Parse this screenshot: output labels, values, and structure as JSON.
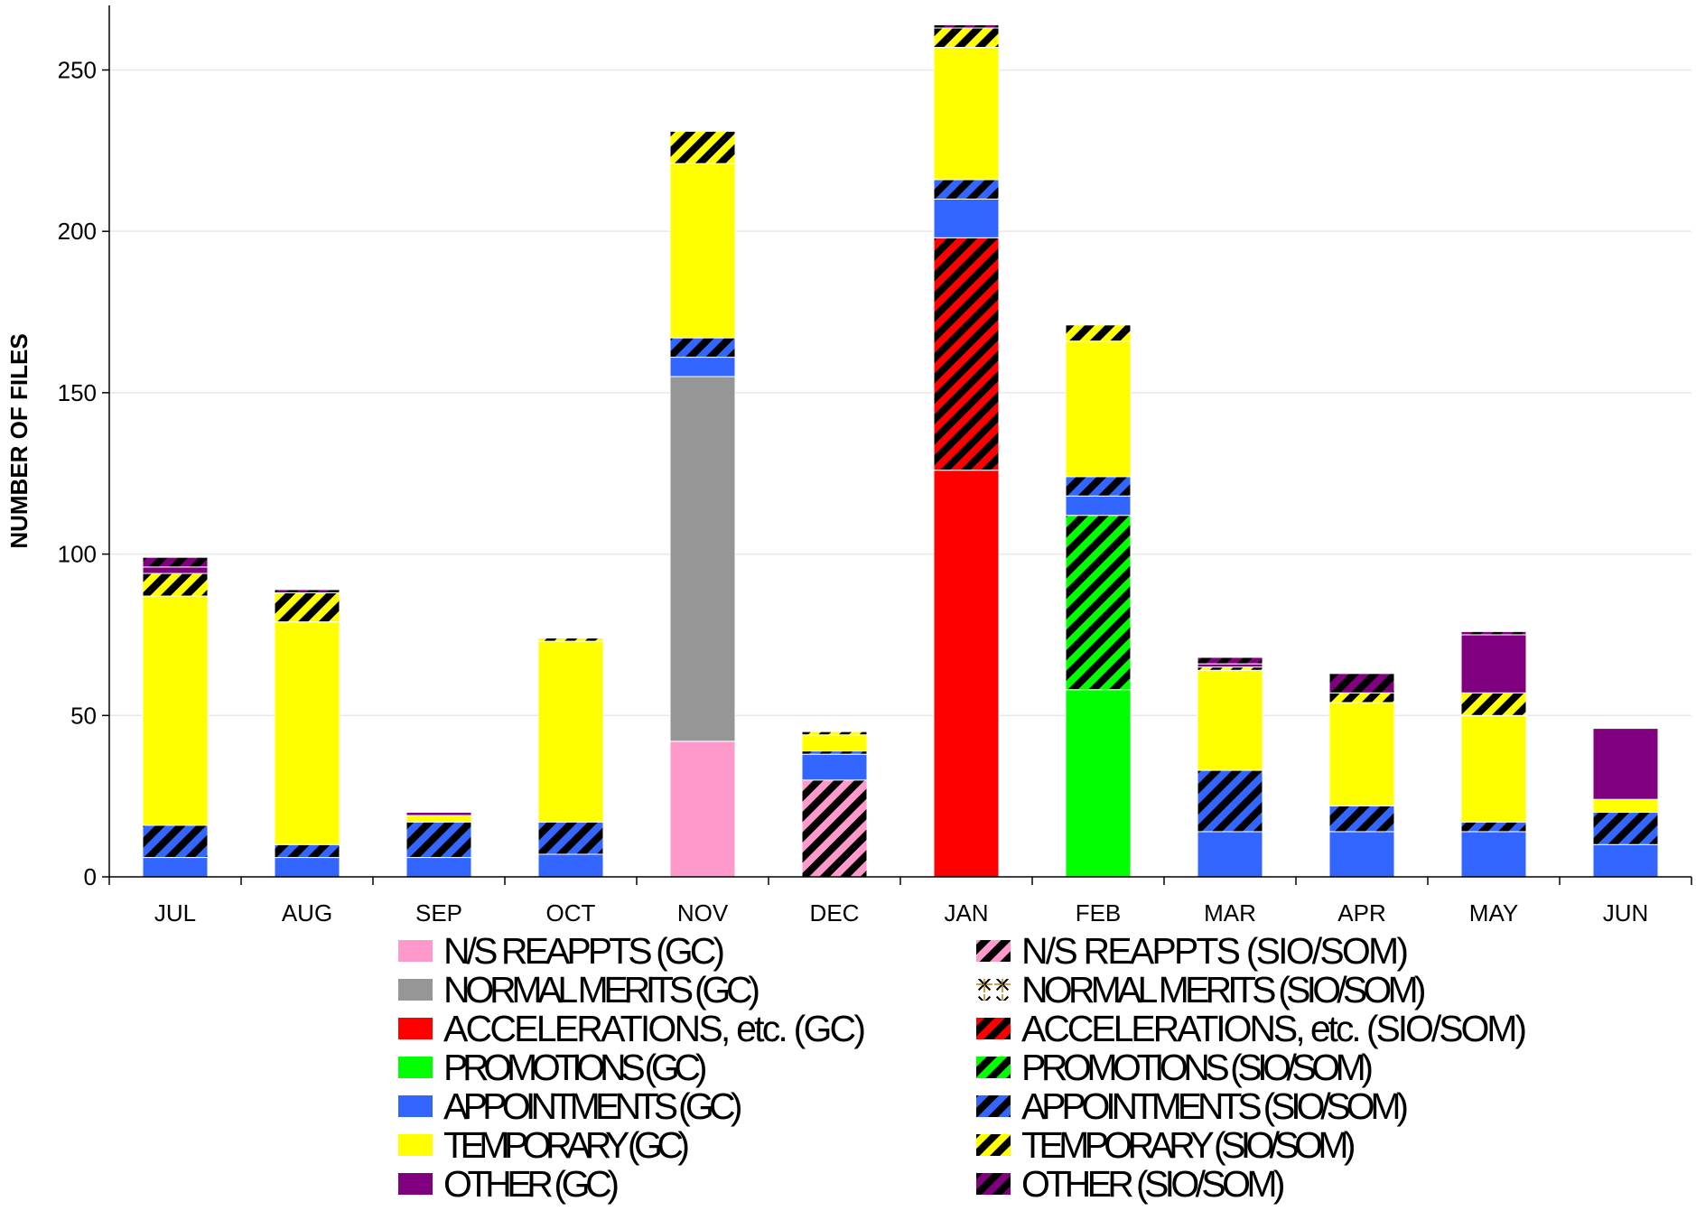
{
  "chart_data": {
    "type": "bar",
    "stacked": true,
    "title": "",
    "xlabel": "",
    "ylabel": "NUMBER OF FILES",
    "ylim": [
      0,
      270
    ],
    "yticks": [
      0,
      50,
      100,
      150,
      200,
      250
    ],
    "grid": true,
    "legend_position": "bottom",
    "categories": [
      "JUL",
      "AUG",
      "SEP",
      "OCT",
      "NOV",
      "DEC",
      "JAN",
      "FEB",
      "MAR",
      "APR",
      "MAY",
      "JUN"
    ],
    "series": [
      {
        "name": "N/S REAPPTS (GC)",
        "color": "#ff99cc",
        "pattern": "solid",
        "values": [
          0,
          0,
          0,
          0,
          42,
          0,
          0,
          0,
          0,
          0,
          0,
          0
        ]
      },
      {
        "name": "N/S REAPPTS  (SIO/SOM)",
        "color": "#ff99cc",
        "pattern": "hatched",
        "values": [
          0,
          0,
          0,
          0,
          0,
          30,
          0,
          0,
          0,
          0,
          0,
          0
        ]
      },
      {
        "name": "NORMAL MERITS (GC)",
        "color": "#969696",
        "pattern": "solid",
        "values": [
          0,
          0,
          0,
          0,
          113,
          0,
          0,
          0,
          0,
          0,
          0,
          0
        ]
      },
      {
        "name": "NORMAL MERITS (SIO/SOM)",
        "color": "#c8a050",
        "pattern": "starburst",
        "values": [
          0,
          0,
          0,
          0,
          0,
          0,
          0,
          0,
          0,
          0,
          0,
          0
        ]
      },
      {
        "name": "ACCELERATIONS, etc. (GC)",
        "color": "#ff0000",
        "pattern": "solid",
        "values": [
          0,
          0,
          0,
          0,
          0,
          0,
          126,
          0,
          0,
          0,
          0,
          0
        ]
      },
      {
        "name": "ACCELERATIONS, etc. (SIO/SOM)",
        "color": "#ff0000",
        "pattern": "hatched",
        "values": [
          0,
          0,
          0,
          0,
          0,
          0,
          72,
          0,
          0,
          0,
          0,
          0
        ]
      },
      {
        "name": "PROMOTIONS (GC)",
        "color": "#00ff00",
        "pattern": "solid",
        "values": [
          0,
          0,
          0,
          0,
          0,
          0,
          0,
          58,
          0,
          0,
          0,
          0
        ]
      },
      {
        "name": "PROMOTIONS (SIO/SOM)",
        "color": "#00ff00",
        "pattern": "hatched",
        "values": [
          0,
          0,
          0,
          0,
          0,
          0,
          0,
          54,
          0,
          0,
          0,
          0
        ]
      },
      {
        "name": "APPOINTMENTS (GC)",
        "color": "#3366ff",
        "pattern": "solid",
        "values": [
          6,
          6,
          6,
          7,
          6,
          8,
          12,
          6,
          14,
          14,
          14,
          10
        ]
      },
      {
        "name": "APPOINTMENTS (SIO/SOM)",
        "color": "#3366ff",
        "pattern": "hatched",
        "values": [
          10,
          4,
          11,
          10,
          6,
          1,
          6,
          6,
          19,
          8,
          3,
          10
        ]
      },
      {
        "name": "TEMPORARY (GC)",
        "color": "#ffff00",
        "pattern": "solid",
        "values": [
          71,
          69,
          2,
          56,
          54,
          5,
          41,
          42,
          31,
          32,
          33,
          4
        ]
      },
      {
        "name": "TEMPORARY (SIO/SOM)",
        "color": "#ffff00",
        "pattern": "hatched",
        "values": [
          7,
          9,
          0,
          1,
          10,
          1,
          6,
          5,
          1,
          3,
          7,
          0
        ]
      },
      {
        "name": "OTHER (GC)",
        "color": "#800080",
        "pattern": "solid",
        "values": [
          2,
          0,
          1,
          0,
          0,
          0,
          0,
          0,
          1,
          0,
          18,
          22
        ]
      },
      {
        "name": "OTHER (SIO/SOM)",
        "color": "#800080",
        "pattern": "hatched",
        "values": [
          3,
          1,
          0,
          0,
          0,
          0,
          1,
          0,
          2,
          6,
          1,
          0
        ]
      }
    ]
  }
}
